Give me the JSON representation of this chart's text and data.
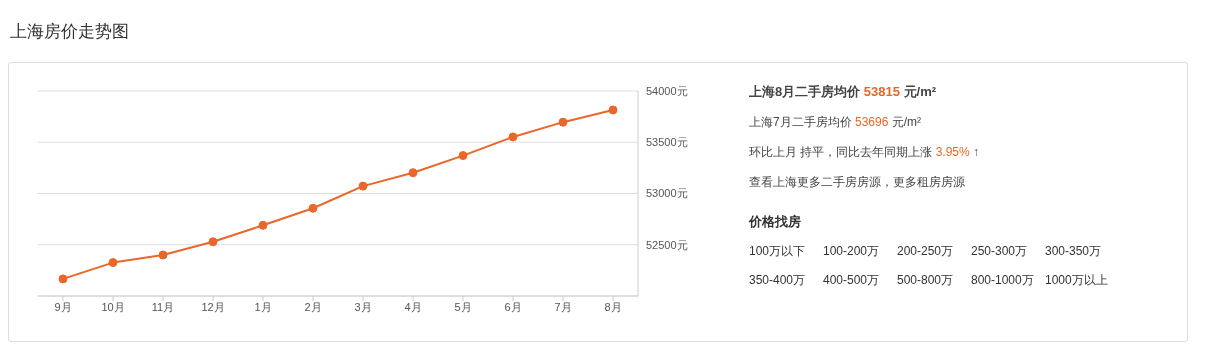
{
  "chart_data": [
    {
      "type": "line",
      "title": "上海房价走势图",
      "categories": [
        "9月",
        "10月",
        "11月",
        "12月",
        "1月",
        "2月",
        "3月",
        "4月",
        "5月",
        "6月",
        "7月",
        "8月"
      ],
      "values": [
        52167,
        52326,
        52400,
        52529,
        52690,
        52856,
        53072,
        53203,
        53370,
        53552,
        53696,
        53815
      ],
      "color": "#e8672a",
      "ylim": [
        52000,
        54000
      ],
      "yticks": [
        {
          "value": 52000,
          "label": null
        },
        {
          "value": 52500,
          "label": "52500元"
        },
        {
          "value": 53000,
          "label": "53000元"
        },
        {
          "value": 53500,
          "label": "53500元"
        },
        {
          "value": 54000,
          "label": "54000元"
        }
      ],
      "grid": "y",
      "marker": "circle"
    },
    {
      "type": "other",
      "annotations": [
        "上海8月二手房均价 53815 元/m²",
        "上海7月二手房均价 53696 元/m²",
        "环比上月 持平，同比去年同期上涨 3.95% ↑",
        "查看上海更多二手房房源，更多租房房源"
      ]
    },
    {
      "type": "other",
      "title": "价格找房",
      "annotations": [
        "100万以下",
        "100-200万",
        "200-250万",
        "250-300万",
        "300-350万",
        "350-400万",
        "400-500万",
        "500-800万",
        "800-1000万",
        "1000万以上"
      ]
    }
  ]
}
